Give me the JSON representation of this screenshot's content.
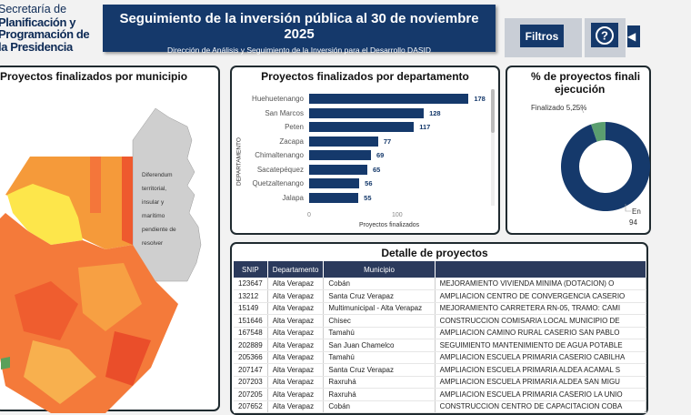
{
  "logo": {
    "line1": "Secretaría de",
    "line2": "Planificación y",
    "line3": "Programación de",
    "line4": "la Presidencia"
  },
  "header": {
    "title": "Seguimiento de la inversión pública al 30 de noviembre 2025",
    "subtitle": "Dirección de Análisis y Seguimiento de la Inversión para el Desarrollo DASID",
    "filters_label": "Filtros",
    "help_icon": "?",
    "back_icon": "◀"
  },
  "map": {
    "title": "Proyectos finalizados por municipio",
    "note": [
      "Diferendum",
      "territorial,",
      "insular y",
      "marítimo",
      "pendiente de",
      "resolver"
    ]
  },
  "chart_data": {
    "type": "bar",
    "title": "Proyectos finalizados por departamento",
    "xlabel": "Proyectos finalizados",
    "ylabel": "DEPARTAMENTO",
    "categories": [
      "Huehuetenango",
      "San Marcos",
      "Peten",
      "Zacapa",
      "Chimaltenango",
      "Sacatepéquez",
      "Quetzaltenango",
      "Jalapa"
    ],
    "values": [
      178,
      128,
      117,
      77,
      69,
      65,
      56,
      55
    ],
    "xticks": [
      "0",
      "100"
    ],
    "color": "#15396b"
  },
  "donut": {
    "title_line1": "% de proyectos finali",
    "title_line2": "ejecución",
    "slices": [
      {
        "label": "Finalizado 5,25%",
        "value": 5.25,
        "color": "#5a9e6f"
      },
      {
        "label": "En",
        "label2": "94",
        "value": 94.75,
        "color": "#15396b"
      }
    ]
  },
  "table": {
    "title": "Detalle de proyectos",
    "columns": [
      "SNIP",
      "Departamento",
      "Municipio",
      ""
    ],
    "rows": [
      [
        "123647",
        "Alta Verapaz",
        "Cobán",
        "MEJORAMIENTO VIVIENDA MINIMA (DOTACION) O"
      ],
      [
        "13212",
        "Alta Verapaz",
        "Santa Cruz Verapaz",
        "AMPLIACION CENTRO DE CONVERGENCIA CASERIO"
      ],
      [
        "15149",
        "Alta Verapaz",
        "Multimunicipal - Alta Verapaz",
        "MEJORAMIENTO CARRETERA RN-05, TRAMO: CAMI"
      ],
      [
        "151646",
        "Alta Verapaz",
        "Chisec",
        "CONSTRUCCION COMISARIA LOCAL MUNICIPIO DE"
      ],
      [
        "167548",
        "Alta Verapaz",
        "Tamahú",
        "AMPLIACION CAMINO RURAL CASERIO SAN PABLO"
      ],
      [
        "202889",
        "Alta Verapaz",
        "San Juan Chamelco",
        "SEGUIMIENTO MANTENIMIENTO DE AGUA POTABLE"
      ],
      [
        "205366",
        "Alta Verapaz",
        "Tamahú",
        "AMPLIACION ESCUELA PRIMARIA CASERIO CABILHA"
      ],
      [
        "207147",
        "Alta Verapaz",
        "Santa Cruz Verapaz",
        "AMPLIACION ESCUELA PRIMARIA ALDEA ACAMAL S"
      ],
      [
        "207203",
        "Alta Verapaz",
        "Raxruhá",
        "AMPLIACION ESCUELA PRIMARIA ALDEA SAN MIGU"
      ],
      [
        "207205",
        "Alta Verapaz",
        "Raxruhá",
        "AMPLIACION ESCUELA PRIMARIA CASERIO LA UNIO"
      ],
      [
        "207652",
        "Alta Verapaz",
        "Cobán",
        "CONSTRUCCION CENTRO DE CAPACITACION COBA"
      ]
    ]
  }
}
